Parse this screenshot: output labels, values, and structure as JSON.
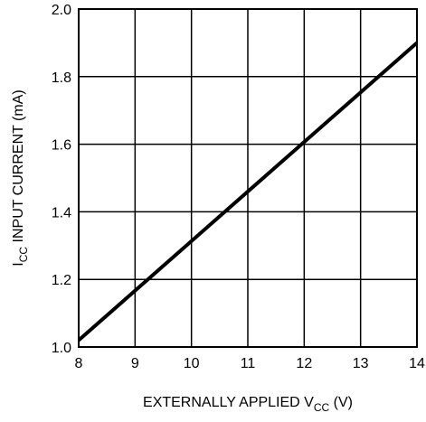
{
  "chart_data": {
    "type": "line",
    "title": "",
    "xlabel": {
      "main": "EXTERNALLY APPLIED V",
      "sub": "CC",
      "unit": " (V)"
    },
    "ylabel": {
      "main": "I",
      "sub": "CC",
      "rest": " INPUT CURRENT (mA)"
    },
    "xlim": [
      8,
      14
    ],
    "ylim": [
      1.0,
      2.0
    ],
    "x_ticks": [
      "8",
      "9",
      "10",
      "11",
      "12",
      "13",
      "14"
    ],
    "y_ticks": [
      "1.0",
      "1.2",
      "1.4",
      "1.6",
      "1.8",
      "2.0"
    ],
    "grid": true,
    "series": [
      {
        "x": [
          8,
          14
        ],
        "y": [
          1.02,
          1.9
        ],
        "color": "#000000"
      }
    ]
  }
}
